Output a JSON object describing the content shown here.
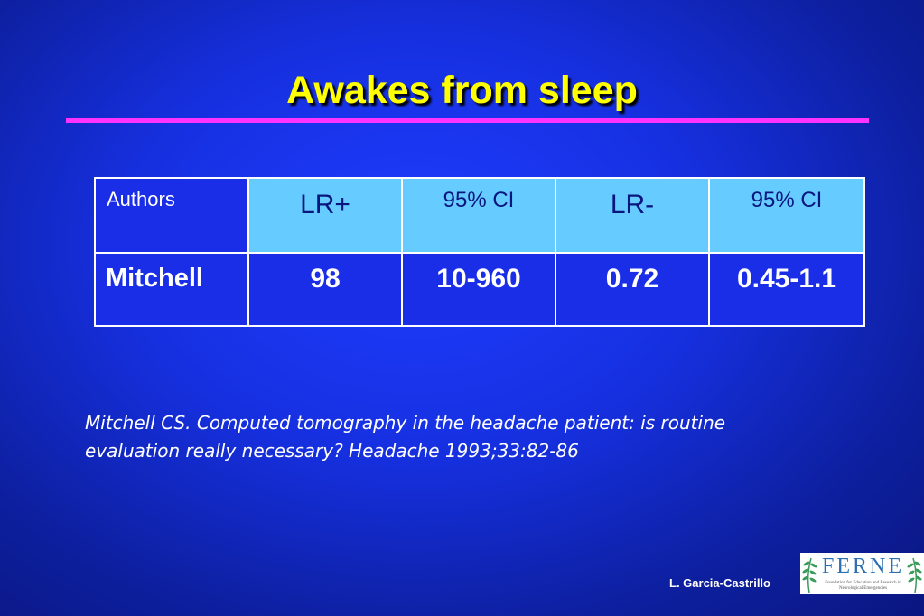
{
  "slide": {
    "title": "Awakes from sleep"
  },
  "table": {
    "headers": [
      "Authors",
      "LR+",
      "95% CI",
      "LR-",
      "95% CI"
    ],
    "rows": [
      [
        "Mitchell",
        "98",
        "10-960",
        "0.72",
        "0.45-1.1"
      ]
    ]
  },
  "reference": {
    "text": "Mitchell CS. Computed tomography in the headache patient: is routine evaluation really necessary? Headache 1993;33:82-86"
  },
  "footer": {
    "author": "L. Garcia-Castrillo",
    "logo_word": "FERNE",
    "logo_tagline": "Foundation for Education and Research in Neurological Emergencies"
  },
  "colors": {
    "title": "#ffff00",
    "rule": "#ff33ff",
    "header_fill": "#66ccff",
    "background": "#1630e0"
  }
}
